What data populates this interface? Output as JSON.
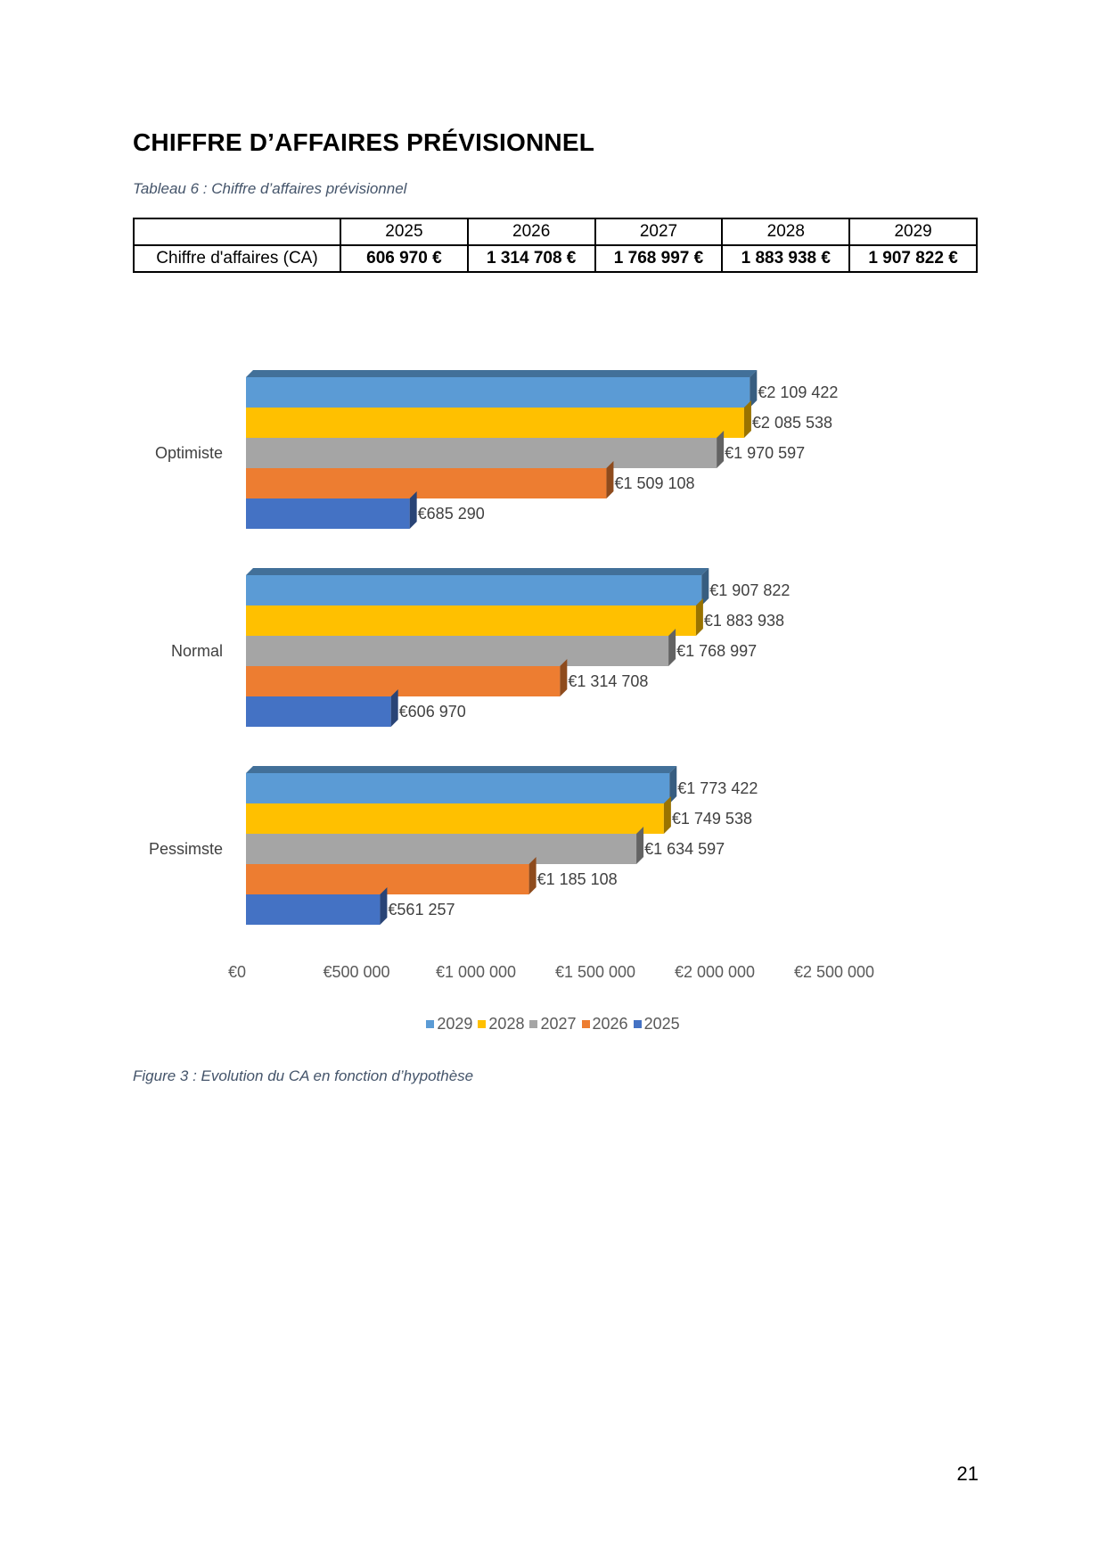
{
  "heading": "CHIFFRE D’AFFAIRES PRÉVISIONNEL",
  "table_caption": "Tableau 6 : Chiffre d’affaires prévisionnel",
  "table": {
    "header": [
      "",
      "2025",
      "2026",
      "2027",
      "2028",
      "2029"
    ],
    "row_label": "Chiffre d'affaires (CA)",
    "row_values": [
      "606 970 €",
      "1 314 708 €",
      "1 768 997 €",
      "1 883 938 €",
      "1 907 822 €"
    ]
  },
  "figure_caption": "Figure 3 : Evolution du CA en fonction d’hypothèse",
  "page_number": "21",
  "chart_data": {
    "type": "bar",
    "orientation": "horizontal",
    "categories": [
      "Optimiste",
      "Normal",
      "Pessimste"
    ],
    "series": [
      {
        "name": "2029",
        "color": "#5b9bd5",
        "values": [
          2109422,
          1907822,
          1773422
        ],
        "labels": [
          "€2 109 422",
          "€1 907 822",
          "€1 773 422"
        ]
      },
      {
        "name": "2028",
        "color": "#ffc000",
        "values": [
          2085538,
          1883938,
          1749538
        ],
        "labels": [
          "€2 085 538",
          "€1 883 938",
          "€1 749 538"
        ]
      },
      {
        "name": "2027",
        "color": "#a5a5a5",
        "values": [
          1970597,
          1768997,
          1634597
        ],
        "labels": [
          "€1 970 597",
          "€1 768 997",
          "€1 634 597"
        ]
      },
      {
        "name": "2026",
        "color": "#ed7d31",
        "values": [
          1509108,
          1314708,
          1185108
        ],
        "labels": [
          "€1 509 108",
          "€1 314 708",
          "€1 185 108"
        ]
      },
      {
        "name": "2025",
        "color": "#4472c4",
        "values": [
          685290,
          606970,
          561257
        ],
        "labels": [
          "€685 290",
          "€606 970",
          "€561 257"
        ]
      }
    ],
    "xlim": [
      0,
      2500000
    ],
    "xticks": [
      0,
      500000,
      1000000,
      1500000,
      2000000,
      2500000
    ],
    "xtick_labels": [
      "€0",
      "€500 000",
      "€1 000 000",
      "€1 500 000",
      "€2 000 000",
      "€2 500 000"
    ],
    "legend": [
      "2029",
      "2028",
      "2027",
      "2026",
      "2025"
    ],
    "legend_position": "bottom",
    "grid": false,
    "style": "3d"
  }
}
